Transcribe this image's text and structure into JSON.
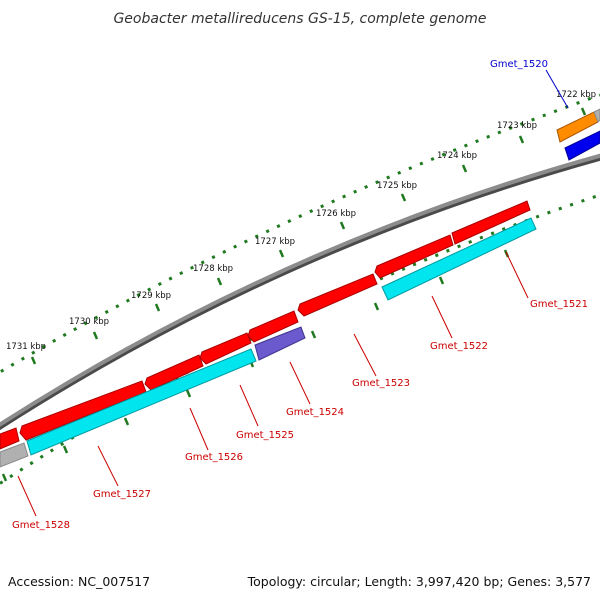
{
  "title": "Geobacter metallireducens GS-15, complete genome",
  "footer": {
    "accession": "Accession: NC_007517",
    "summary": "Topology: circular; Length: 3,997,420 bp; Genes: 3,577"
  },
  "scale": {
    "unit": "kbp",
    "labels": [
      {
        "text": "1722 kbp",
        "kbp": 1722
      },
      {
        "text": "1723 kbp",
        "kbp": 1723
      },
      {
        "text": "1724 kbp",
        "kbp": 1724
      },
      {
        "text": "1725 kbp",
        "kbp": 1725
      },
      {
        "text": "1726 kbp",
        "kbp": 1726
      },
      {
        "text": "1727 kbp",
        "kbp": 1727
      },
      {
        "text": "1728 kbp",
        "kbp": 1728
      },
      {
        "text": "1729 kbp",
        "kbp": 1729
      },
      {
        "text": "1730 kbp",
        "kbp": 1730
      },
      {
        "text": "1731 kbp",
        "kbp": 1731
      }
    ]
  },
  "colors": {
    "backbone": "#7a7a7a",
    "ticks": "#1f7a1f",
    "cds_forward": "#ff0000",
    "cds_reverse": "#00e5ee",
    "orange_feature": "#ff8c00",
    "blue_feature": "#0000ee",
    "purple_feature": "#6a5acd",
    "grey_feature": "#b0b0b0",
    "label_red": "#cc0000",
    "label_blue": "#0000cc"
  },
  "genes": [
    {
      "name": "Gmet_1520",
      "color": "label_blue"
    },
    {
      "name": "Gmet_1521",
      "color": "label_red"
    },
    {
      "name": "Gmet_1522",
      "color": "label_red"
    },
    {
      "name": "Gmet_1523",
      "color": "label_red"
    },
    {
      "name": "Gmet_1524",
      "color": "label_red"
    },
    {
      "name": "Gmet_1525",
      "color": "label_red"
    },
    {
      "name": "Gmet_1526",
      "color": "label_red"
    },
    {
      "name": "Gmet_1527",
      "color": "label_red"
    },
    {
      "name": "Gmet_1528",
      "color": "label_red"
    }
  ]
}
